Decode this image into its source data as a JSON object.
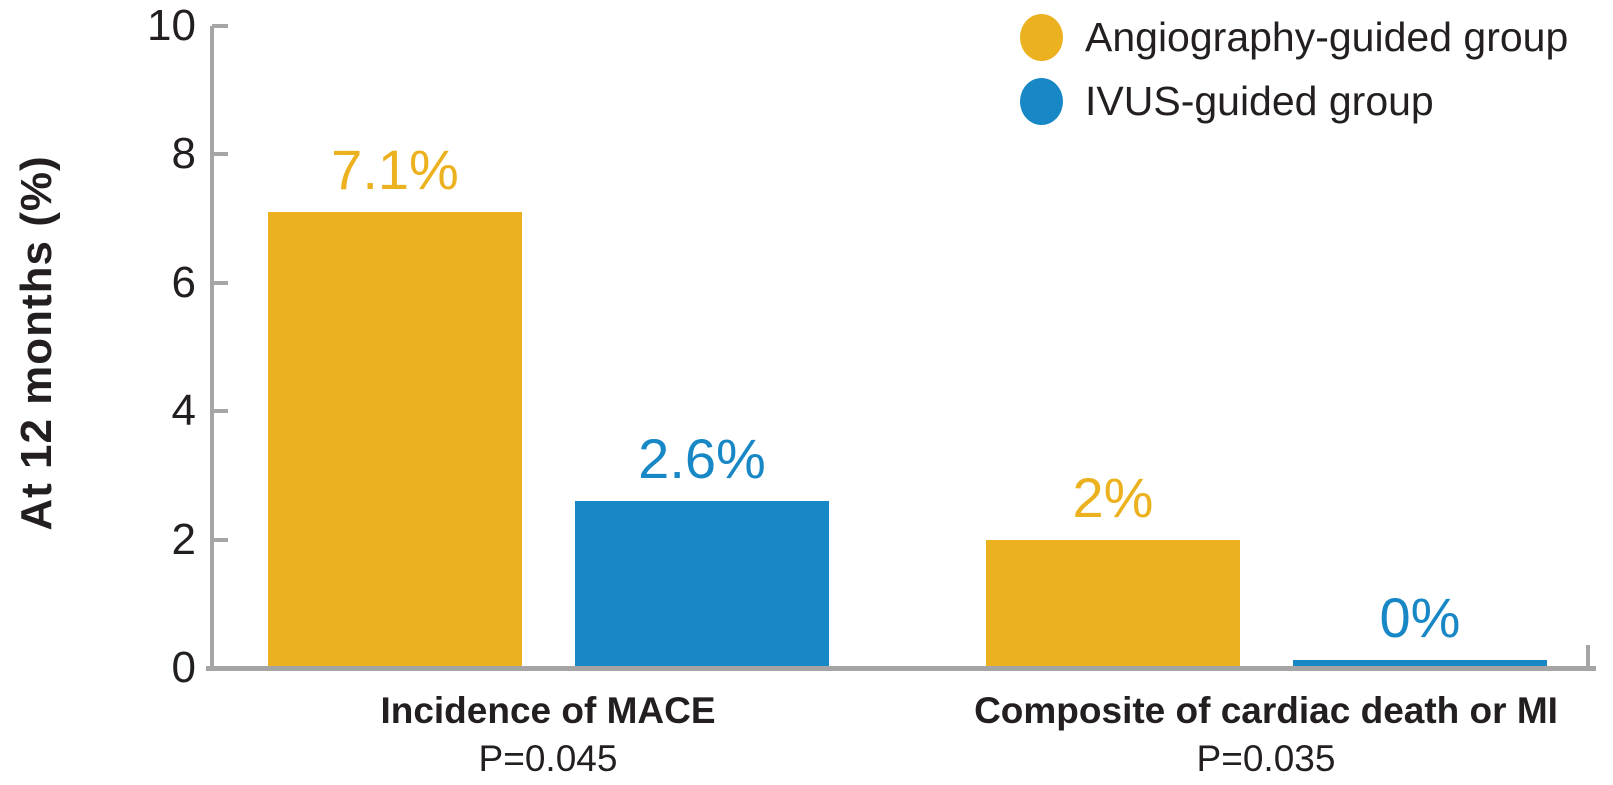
{
  "chart_data": {
    "type": "bar",
    "title": "",
    "ylabel": "At 12 months (%)",
    "ylim": [
      0,
      10
    ],
    "yticks": [
      0,
      2,
      4,
      6,
      8,
      10
    ],
    "grid": false,
    "legend_position": "top-right",
    "categories": [
      "Incidence of MACE",
      "Composite of cardiac death or MI"
    ],
    "category_pvalues": [
      "P=0.045",
      "P=0.035"
    ],
    "series": [
      {
        "name": "Angiography-guided group",
        "color": "#ECB11F",
        "values": [
          7.1,
          2.0
        ],
        "value_labels": [
          "7.1%",
          "2%"
        ]
      },
      {
        "name": "IVUS-guided group",
        "color": "#1787C5",
        "values": [
          2.6,
          0.0
        ],
        "value_labels": [
          "2.6%",
          "0%"
        ]
      }
    ],
    "colors": {
      "axis": "#A5A5A5",
      "text": "#231F20",
      "background": "#FFFFFF"
    }
  }
}
